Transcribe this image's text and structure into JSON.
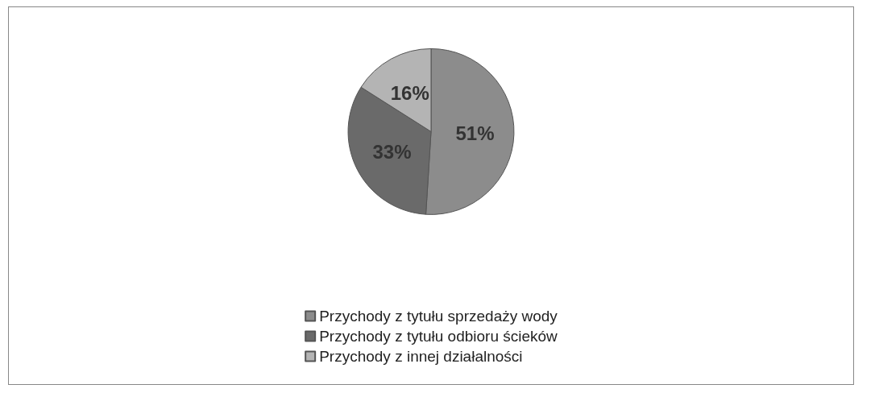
{
  "chart_data": {
    "type": "pie",
    "categories": [
      "Przychody z tytułu sprzedaży wody",
      "Przychody z tytułu odbioru ścieków",
      "Przychody z innej działalności"
    ],
    "values": [
      51,
      33,
      16
    ],
    "colors": [
      "#8c8c8c",
      "#6a6a6a",
      "#b4b4b4"
    ],
    "value_labels": [
      "51%",
      "33%",
      "16%"
    ],
    "legend": "bottom"
  }
}
